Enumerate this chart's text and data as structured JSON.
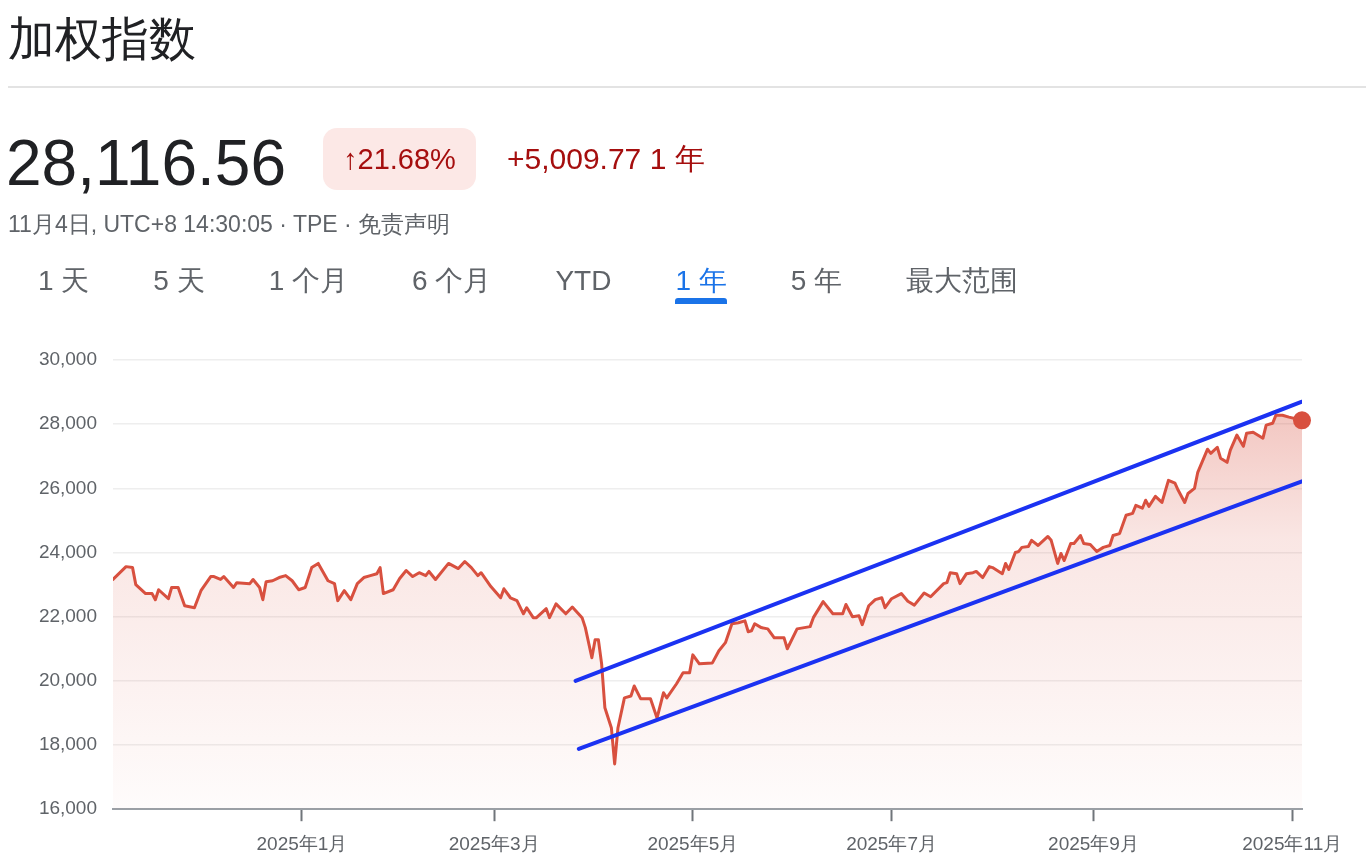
{
  "chart_data": {
    "type": "area",
    "title": "加权指数",
    "subtitle": "11月4日, UTC+8 14:30:05 · TPE · 免责声明",
    "annotations": [
      "28,116.56",
      "↑21.68%",
      "+5,009.77 1 年",
      "1 天",
      "5 天",
      "1 个月",
      "6 个月",
      "YTD",
      "1 年",
      "5 年",
      "最大范围"
    ],
    "series": [
      {
        "color": "#d8503f",
        "x": [
          "2024-11-04",
          "2024-11-08",
          "2024-11-10",
          "2024-11-11",
          "2024-11-14",
          "2024-11-16",
          "2024-11-17",
          "2024-11-18",
          "2024-11-21",
          "2024-11-22",
          "2024-11-24",
          "2024-11-26",
          "2024-11-29",
          "2024-12-01",
          "2024-12-04",
          "2024-12-05",
          "2024-12-07",
          "2024-12-08",
          "2024-12-11",
          "2024-12-12",
          "2024-12-16",
          "2024-12-17",
          "2024-12-19",
          "2024-12-20",
          "2024-12-21",
          "2024-12-23",
          "2024-12-25",
          "2024-12-27",
          "2024-12-29",
          "2024-12-31",
          "2025-01-02",
          "2025-01-04",
          "2025-01-06",
          "2025-01-09",
          "2025-01-11",
          "2025-01-12",
          "2025-01-14",
          "2025-01-16",
          "2025-01-18",
          "2025-01-20",
          "2025-01-22",
          "2025-01-24",
          "2025-01-25",
          "2025-01-26",
          "2025-01-29",
          "2025-01-31",
          "2025-02-02",
          "2025-02-04",
          "2025-02-06",
          "2025-02-08",
          "2025-02-09",
          "2025-02-11",
          "2025-02-15",
          "2025-02-18",
          "2025-02-20",
          "2025-02-22",
          "2025-02-24",
          "2025-02-25",
          "2025-02-28",
          "2025-03-03",
          "2025-03-04",
          "2025-03-06",
          "2025-03-08",
          "2025-03-10",
          "2025-03-11",
          "2025-03-13",
          "2025-03-14",
          "2025-03-17",
          "2025-03-18",
          "2025-03-20",
          "2025-03-23",
          "2025-03-25",
          "2025-03-28",
          "2025-03-29",
          "2025-03-31",
          "2025-04-01",
          "2025-04-02",
          "2025-04-03",
          "2025-04-04",
          "2025-04-06",
          "2025-04-07",
          "2025-04-08",
          "2025-04-10",
          "2025-04-12",
          "2025-04-13",
          "2025-04-15",
          "2025-04-18",
          "2025-04-20",
          "2025-04-22",
          "2025-04-23",
          "2025-04-26",
          "2025-04-28",
          "2025-04-30",
          "2025-05-01",
          "2025-05-03",
          "2025-05-07",
          "2025-05-09",
          "2025-05-11",
          "2025-05-13",
          "2025-05-15",
          "2025-05-17",
          "2025-05-18",
          "2025-05-19",
          "2025-05-20",
          "2025-05-22",
          "2025-05-24",
          "2025-05-26",
          "2025-05-29",
          "2025-05-30",
          "2025-06-02",
          "2025-06-06",
          "2025-06-07",
          "2025-06-10",
          "2025-06-13",
          "2025-06-16",
          "2025-06-17",
          "2025-06-19",
          "2025-06-21",
          "2025-06-22",
          "2025-06-24",
          "2025-06-26",
          "2025-06-28",
          "2025-06-29",
          "2025-07-01",
          "2025-07-04",
          "2025-07-06",
          "2025-07-08",
          "2025-07-11",
          "2025-07-13",
          "2025-07-17",
          "2025-07-18",
          "2025-07-19",
          "2025-07-21",
          "2025-07-22",
          "2025-07-24",
          "2025-07-26",
          "2025-07-27",
          "2025-07-29",
          "2025-07-31",
          "2025-08-01",
          "2025-08-04",
          "2025-08-05",
          "2025-08-06",
          "2025-08-08",
          "2025-08-09",
          "2025-08-10",
          "2025-08-12",
          "2025-08-13",
          "2025-08-15",
          "2025-08-18",
          "2025-08-19",
          "2025-08-21",
          "2025-08-22",
          "2025-08-23",
          "2025-08-25",
          "2025-08-26",
          "2025-08-28",
          "2025-08-29",
          "2025-08-31",
          "2025-09-02",
          "2025-09-04",
          "2025-09-06",
          "2025-09-07",
          "2025-09-09",
          "2025-09-11",
          "2025-09-13",
          "2025-09-14",
          "2025-09-16",
          "2025-09-17",
          "2025-09-18",
          "2025-09-20",
          "2025-09-22",
          "2025-09-24",
          "2025-09-26",
          "2025-09-27",
          "2025-09-29",
          "2025-09-30",
          "2025-10-02",
          "2025-10-03",
          "2025-10-06",
          "2025-10-07",
          "2025-10-09",
          "2025-10-10",
          "2025-10-12",
          "2025-10-13",
          "2025-10-15",
          "2025-10-17",
          "2025-10-18",
          "2025-10-20",
          "2025-10-23",
          "2025-10-24",
          "2025-10-26",
          "2025-10-27",
          "2025-10-29",
          "2025-10-31",
          "2025-11-04"
        ],
        "values": [
          23160,
          23560,
          23530,
          23000,
          22720,
          22720,
          22530,
          22840,
          22560,
          22910,
          22910,
          22340,
          22280,
          22810,
          23250,
          23250,
          23160,
          23250,
          22910,
          23060,
          23030,
          23160,
          22910,
          22530,
          23090,
          23120,
          23220,
          23280,
          23120,
          22840,
          22910,
          23530,
          23660,
          23120,
          23030,
          22500,
          22810,
          22530,
          23030,
          23220,
          23280,
          23340,
          23530,
          22720,
          22840,
          23190,
          23440,
          23250,
          23370,
          23280,
          23410,
          23160,
          23660,
          23500,
          23720,
          23530,
          23280,
          23370,
          22940,
          22590,
          22870,
          22590,
          22500,
          22090,
          22280,
          21970,
          21970,
          22250,
          21970,
          22400,
          22090,
          22300,
          21970,
          21660,
          20720,
          21280,
          21280,
          20530,
          19160,
          18530,
          17410,
          18530,
          19470,
          19530,
          19840,
          19440,
          19440,
          18840,
          19630,
          19470,
          19910,
          20250,
          20250,
          20810,
          20530,
          20560,
          20940,
          21190,
          21780,
          21810,
          21870,
          21530,
          21560,
          21780,
          21660,
          21620,
          21340,
          21340,
          21000,
          21620,
          21690,
          21970,
          22470,
          22090,
          22090,
          22380,
          22000,
          22030,
          21750,
          22340,
          22530,
          22590,
          22280,
          22560,
          22720,
          22480,
          22360,
          22740,
          22620,
          23030,
          23060,
          23370,
          23340,
          23030,
          23340,
          23370,
          23410,
          23220,
          23560,
          23530,
          23340,
          23660,
          23470,
          24000,
          24030,
          24160,
          24190,
          24380,
          24220,
          24500,
          24380,
          23660,
          23970,
          23750,
          24280,
          24280,
          24530,
          24280,
          24250,
          24030,
          24160,
          24220,
          24530,
          24590,
          25160,
          25220,
          25470,
          25380,
          25630,
          25440,
          25750,
          25560,
          26250,
          26160,
          25940,
          25560,
          25840,
          26000,
          26500,
          27220,
          27090,
          27280,
          26940,
          26810,
          27190,
          27660,
          27310,
          27720,
          27750,
          27560,
          27970,
          28030,
          28280,
          28280,
          28220,
          28120
        ]
      },
      {
        "type": "scatter",
        "color": "#d8503f",
        "x": [
          "2025-11-04"
        ],
        "values": [
          28120
        ]
      },
      {
        "type": "line",
        "color": "#1b32f2",
        "x": [
          "2025-03-26",
          "2025-11-04"
        ],
        "values": [
          20000,
          28700
        ]
      },
      {
        "type": "line",
        "color": "#1b32f2",
        "x": [
          "2025-03-27",
          "2025-11-04"
        ],
        "values": [
          17880,
          26220
        ]
      }
    ],
    "xlim": [
      "2024-11-04",
      "2025-11-04"
    ],
    "xticks": [
      {
        "value": "2025-01-01",
        "label": "2025年1月"
      },
      {
        "value": "2025-03-01",
        "label": "2025年3月"
      },
      {
        "value": "2025-05-01",
        "label": "2025年5月"
      },
      {
        "value": "2025-07-01",
        "label": "2025年7月"
      },
      {
        "value": "2025-09-01",
        "label": "2025年9月"
      },
      {
        "value": "2025-11-01",
        "label": "2025年11月"
      }
    ],
    "ylim": [
      16000,
      30000
    ],
    "yticks": [
      {
        "value": 16000,
        "label": "16,000"
      },
      {
        "value": 18000,
        "label": "18,000"
      },
      {
        "value": 20000,
        "label": "20,000"
      },
      {
        "value": 22000,
        "label": "22,000"
      },
      {
        "value": 24000,
        "label": "24,000"
      },
      {
        "value": 26000,
        "label": "26,000"
      },
      {
        "value": 28000,
        "label": "28,000"
      },
      {
        "value": 30000,
        "label": "30,000"
      }
    ],
    "grid": "y"
  }
}
